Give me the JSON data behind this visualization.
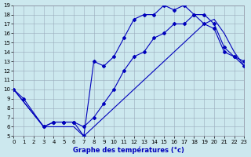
{
  "xlabel": "Graphe des températures (°c)",
  "bg_color": "#cce8ee",
  "grid_color": "#99aabb",
  "line_color": "#0000bb",
  "xlim": [
    0,
    23
  ],
  "ylim": [
    5,
    19
  ],
  "xticks": [
    0,
    1,
    2,
    3,
    4,
    5,
    6,
    7,
    8,
    9,
    10,
    11,
    12,
    13,
    14,
    15,
    16,
    17,
    18,
    19,
    20,
    21,
    22,
    23
  ],
  "yticks": [
    5,
    6,
    7,
    8,
    9,
    10,
    11,
    12,
    13,
    14,
    15,
    16,
    17,
    18,
    19
  ],
  "line1_x": [
    0,
    1,
    3,
    4,
    5,
    6,
    7,
    8,
    9,
    10,
    11,
    12,
    13,
    14,
    15,
    16,
    17,
    18,
    19,
    20,
    21,
    22,
    23
  ],
  "line1_y": [
    10,
    9,
    6,
    6.5,
    6.5,
    6.5,
    5,
    13,
    12.5,
    13.5,
    15.5,
    17.5,
    18,
    18,
    19,
    18.5,
    19,
    18,
    18,
    17,
    14.5,
    13.5,
    13
  ],
  "line2_x": [
    0,
    3,
    4,
    5,
    6,
    7,
    8,
    9,
    10,
    11,
    12,
    13,
    14,
    15,
    16,
    17,
    18,
    19,
    20,
    21,
    22,
    23
  ],
  "line2_y": [
    10,
    6,
    6.5,
    6.5,
    6.5,
    6,
    7,
    8.5,
    10,
    12,
    13.5,
    14,
    15.5,
    16,
    17,
    17,
    18,
    17,
    16.5,
    14,
    13.5,
    12.5
  ],
  "line3_x": [
    0,
    3,
    4,
    5,
    6,
    7,
    8,
    9,
    10,
    11,
    12,
    13,
    14,
    15,
    16,
    17,
    18,
    19,
    20,
    21,
    22,
    23
  ],
  "line3_y": [
    10,
    6,
    6,
    6,
    6,
    5,
    6,
    7,
    8,
    9,
    10,
    11,
    12,
    13,
    14,
    15,
    16,
    17,
    17.5,
    16,
    14,
    12.5
  ],
  "marker_style": "D",
  "marker_size": 2.0,
  "line_width": 0.8,
  "tick_fontsize": 5,
  "xlabel_fontsize": 6
}
